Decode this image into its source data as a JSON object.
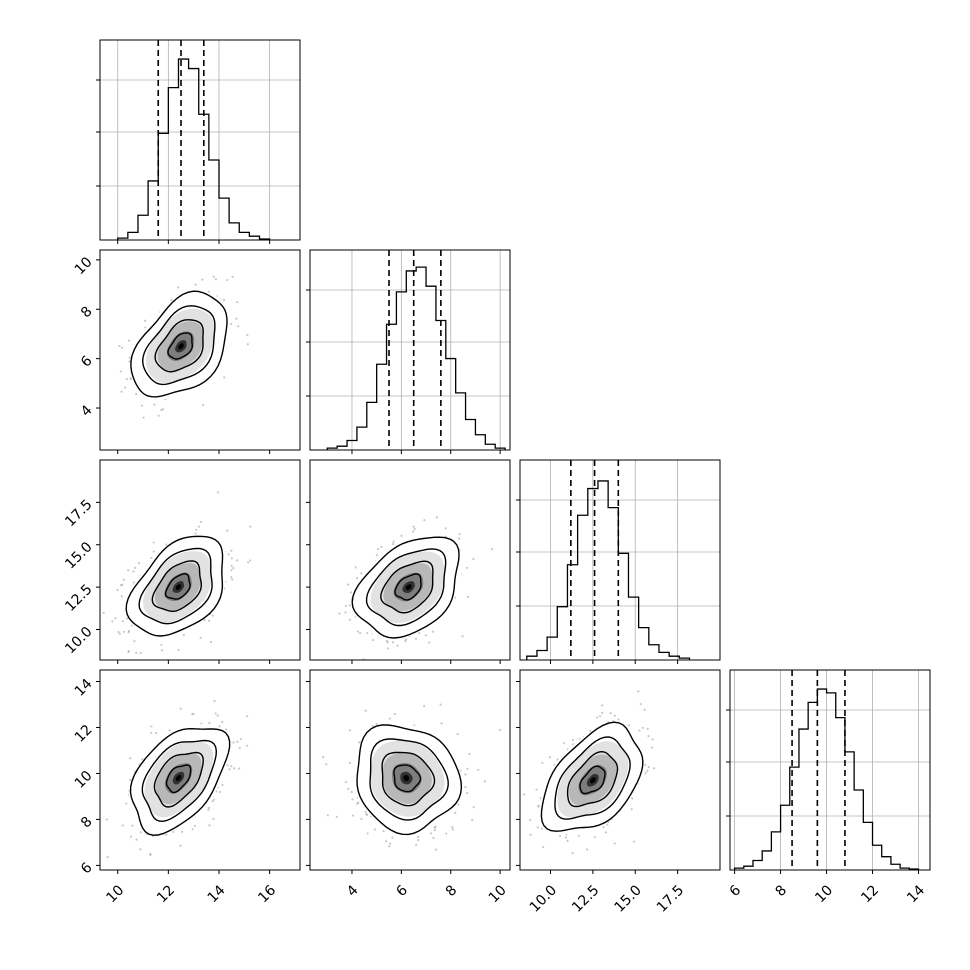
{
  "chart_data": {
    "type": "corner",
    "grid": true,
    "n_params": 4,
    "colors": {
      "hist": "#000000",
      "points": "#9a9a9a",
      "contour": "#000000",
      "quantile": "#000000",
      "grid": "#b0b0b0"
    },
    "params": [
      {
        "range": [
          9.3,
          17.2
        ],
        "ticks": [
          10,
          12,
          14,
          16
        ],
        "tick_labels": [
          "10",
          "12",
          "14",
          "16"
        ],
        "mean": 12.5,
        "sd": 0.9
      },
      {
        "range": [
          2.3,
          10.4
        ],
        "ticks": [
          4,
          6,
          8,
          10
        ],
        "tick_labels": [
          "4",
          "6",
          "8",
          "10"
        ],
        "mean": 6.5,
        "sd": 1.0
      },
      {
        "range": [
          8.2,
          20.0
        ],
        "ticks": [
          10.0,
          12.5,
          15.0,
          17.5
        ],
        "tick_labels": [
          "10.0",
          "12.5",
          "15.0",
          "17.5"
        ],
        "mean": 12.6,
        "sd": 1.4
      },
      {
        "range": [
          5.8,
          14.5
        ],
        "ticks": [
          6,
          8,
          10,
          12,
          14
        ],
        "tick_labels": [
          "6",
          "8",
          "10",
          "12",
          "14"
        ],
        "mean": 9.7,
        "sd": 1.1
      }
    ],
    "histograms": [
      {
        "param": 0,
        "bin_edges": [
          10.0,
          10.4,
          10.8,
          11.2,
          11.6,
          12.0,
          12.4,
          12.8,
          13.2,
          13.6,
          14.0,
          14.4,
          14.8,
          15.2,
          15.6,
          16.0
        ],
        "counts": [
          0.01,
          0.04,
          0.13,
          0.31,
          0.56,
          0.8,
          0.95,
          0.9,
          0.66,
          0.42,
          0.22,
          0.09,
          0.04,
          0.02,
          0.005
        ],
        "quantiles": [
          11.6,
          12.5,
          13.4
        ]
      },
      {
        "param": 1,
        "bin_edges": [
          3.0,
          3.4,
          3.8,
          4.2,
          4.6,
          5.0,
          5.4,
          5.8,
          6.2,
          6.6,
          7.0,
          7.4,
          7.8,
          8.2,
          8.6,
          9.0,
          9.4,
          9.8,
          10.2
        ],
        "counts": [
          0.01,
          0.02,
          0.05,
          0.12,
          0.25,
          0.45,
          0.66,
          0.83,
          0.94,
          0.96,
          0.86,
          0.68,
          0.48,
          0.3,
          0.16,
          0.08,
          0.03,
          0.01
        ],
        "quantiles": [
          5.5,
          6.5,
          7.6
        ]
      },
      {
        "param": 2,
        "bin_edges": [
          8.6,
          9.2,
          9.8,
          10.4,
          11.0,
          11.6,
          12.2,
          12.8,
          13.4,
          14.0,
          14.6,
          15.2,
          15.8,
          16.4,
          17.0,
          17.6,
          18.2
        ],
        "counts": [
          0.02,
          0.05,
          0.12,
          0.28,
          0.5,
          0.76,
          0.9,
          0.94,
          0.8,
          0.56,
          0.33,
          0.17,
          0.08,
          0.04,
          0.02,
          0.01
        ],
        "quantiles": [
          11.2,
          12.6,
          14.0
        ]
      },
      {
        "param": 3,
        "bin_edges": [
          6.0,
          6.4,
          6.8,
          7.2,
          7.6,
          8.0,
          8.4,
          8.8,
          9.2,
          9.6,
          10.0,
          10.4,
          10.8,
          11.2,
          11.6,
          12.0,
          12.4,
          12.8,
          13.2,
          13.6,
          14.0
        ],
        "counts": [
          0.01,
          0.02,
          0.05,
          0.1,
          0.2,
          0.34,
          0.54,
          0.74,
          0.88,
          0.95,
          0.93,
          0.8,
          0.62,
          0.42,
          0.25,
          0.13,
          0.07,
          0.03,
          0.01,
          0.005
        ],
        "quantiles": [
          8.5,
          9.6,
          10.8
        ]
      }
    ],
    "pairs": [
      {
        "x_param": 0,
        "y_param": 1,
        "correlation": 0.4,
        "center": [
          12.5,
          6.5
        ]
      },
      {
        "x_param": 0,
        "y_param": 2,
        "correlation": 0.4,
        "center": [
          12.4,
          12.5
        ]
      },
      {
        "x_param": 1,
        "y_param": 2,
        "correlation": 0.35,
        "center": [
          6.3,
          12.5
        ]
      },
      {
        "x_param": 0,
        "y_param": 3,
        "correlation": 0.45,
        "center": [
          12.4,
          9.8
        ]
      },
      {
        "x_param": 1,
        "y_param": 3,
        "correlation": -0.1,
        "center": [
          6.2,
          9.8
        ]
      },
      {
        "x_param": 2,
        "y_param": 3,
        "correlation": 0.45,
        "center": [
          12.5,
          9.7
        ]
      }
    ],
    "contour_levels_sigma": [
      0.5,
      1.0,
      1.5,
      2.0
    ],
    "n_scatter_points_per_panel": 500
  }
}
